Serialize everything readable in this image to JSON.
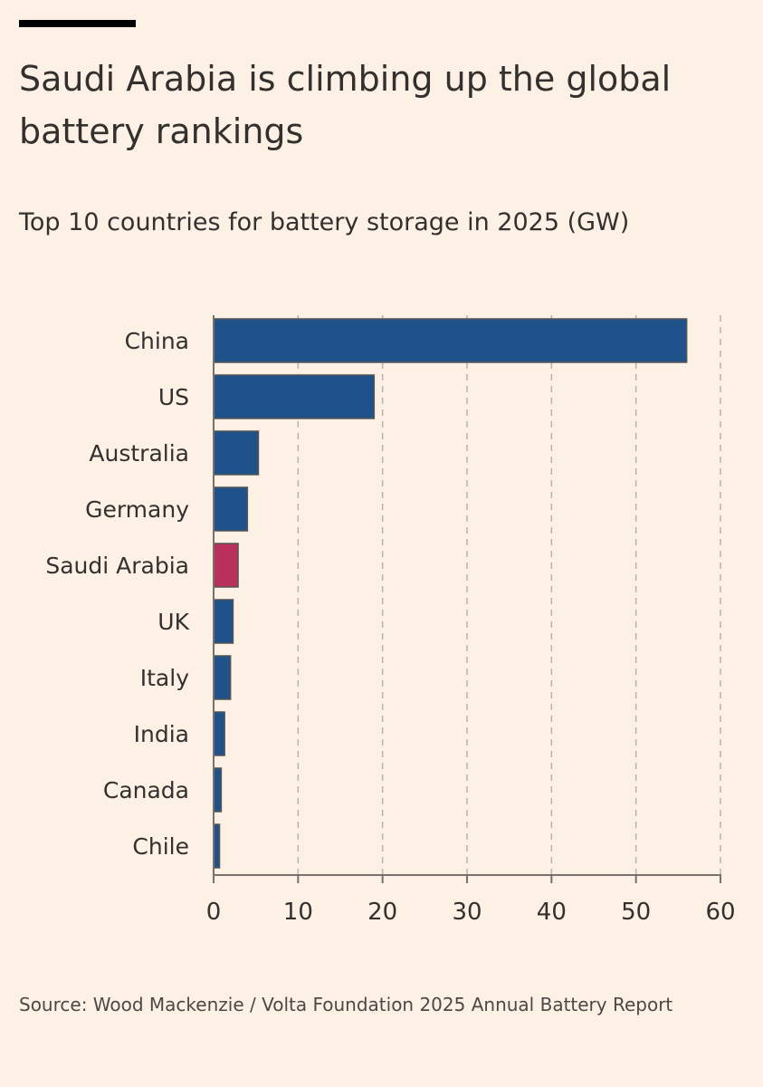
{
  "title": "Saudi Arabia is climbing up the global battery rankings",
  "subtitle": "Top 10 countries for battery storage in 2025 (GW)",
  "source": "Source: Wood Mackenzie / Volta Foundation 2025 Annual Battery Report",
  "colors": {
    "background": "#fdf1e6",
    "bar": "#1f528a",
    "highlight": "#b8315d",
    "grid": "#b9b3ad",
    "text": "#33302e"
  },
  "chart_data": {
    "type": "bar",
    "orientation": "horizontal",
    "categories": [
      "China",
      "US",
      "Australia",
      "Germany",
      "Saudi Arabia",
      "UK",
      "Italy",
      "India",
      "Canada",
      "Chile"
    ],
    "values": [
      56,
      19,
      5.3,
      4,
      2.9,
      2.3,
      2,
      1.3,
      0.9,
      0.7
    ],
    "highlight": "Saudi Arabia",
    "xlim": [
      0,
      60
    ],
    "xticks": [
      0,
      10,
      20,
      30,
      40,
      50,
      60
    ],
    "grid": "vertical dashed"
  }
}
